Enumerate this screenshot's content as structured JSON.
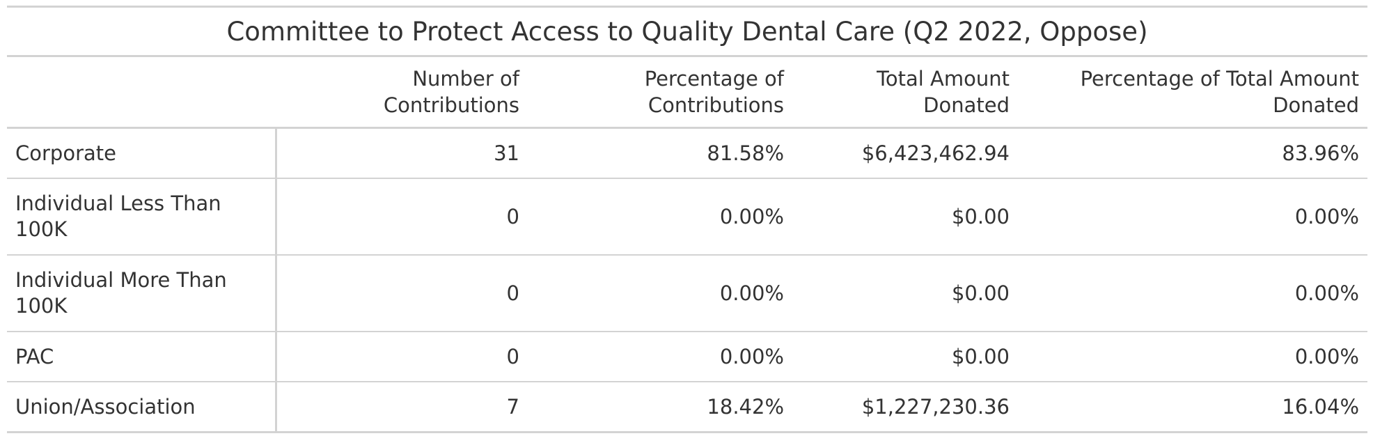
{
  "chart_data": {
    "type": "table",
    "title": "Committee to Protect Access to Quality Dental Care (Q2 2022, Oppose)",
    "columns": [
      "",
      "Number of Contributions",
      "Percentage of Contributions",
      "Total Amount Donated",
      "Percentage of Total Amount Donated"
    ],
    "rows": [
      {
        "category": "Corporate",
        "number": "31",
        "pct_contrib": "81.58%",
        "amount": "$6,423,462.94",
        "pct_amount": "83.96%"
      },
      {
        "category": "Individual Less Than 100K",
        "number": "0",
        "pct_contrib": "0.00%",
        "amount": "$0.00",
        "pct_amount": "0.00%"
      },
      {
        "category": "Individual More Than 100K",
        "number": "0",
        "pct_contrib": "0.00%",
        "amount": "$0.00",
        "pct_amount": "0.00%"
      },
      {
        "category": "PAC",
        "number": "0",
        "pct_contrib": "0.00%",
        "amount": "$0.00",
        "pct_amount": "0.00%"
      },
      {
        "category": "Union/Association",
        "number": "7",
        "pct_contrib": "18.42%",
        "amount": "$1,227,230.36",
        "pct_amount": "16.04%"
      }
    ]
  },
  "colors": {
    "text": "#333333",
    "rule": "#d3d3d3",
    "background": "#ffffff"
  }
}
